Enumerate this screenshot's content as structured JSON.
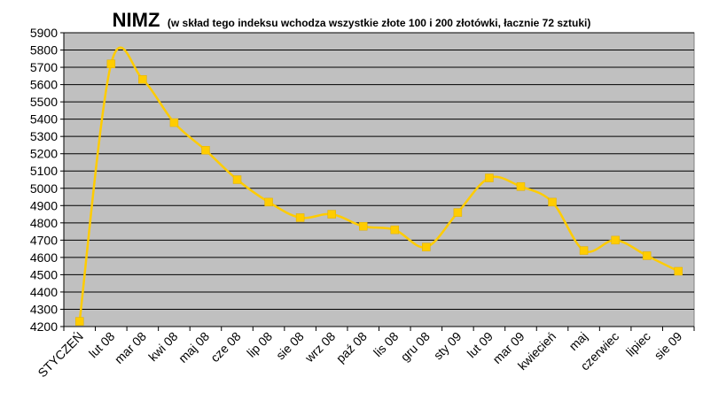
{
  "chart_data": {
    "type": "line",
    "title": "NIMZ",
    "subtitle": "(w skład tego indeksu wchodza wszystkie  złote 100 i 200 złotówki, łacznie 72 sztuki)",
    "categories": [
      "STYCZEŃ",
      "lut 08",
      "mar 08",
      "kwi 08",
      "maj 08",
      "cze 08",
      "lip 08",
      "sie 08",
      "wrz 08",
      "paź 08",
      "lis 08",
      "gru 08",
      "sty 09",
      "lut 09",
      "mar 09",
      "kwiecień",
      "maj",
      "czerwiec",
      "lipiec",
      "sie 09"
    ],
    "series": [
      {
        "values": [
          4230,
          5720,
          5630,
          5380,
          5220,
          5050,
          4920,
          4830,
          4850,
          4780,
          4760,
          4660,
          4860,
          5060,
          5010,
          4920,
          4640,
          4700,
          4610,
          4520
        ]
      }
    ],
    "ylim": [
      4200,
      5900
    ],
    "ytick_step": 100,
    "grid": true,
    "colors": {
      "plot_bg": "#c0c0c0",
      "line": "#ffcc00",
      "grid": "#000000"
    }
  }
}
